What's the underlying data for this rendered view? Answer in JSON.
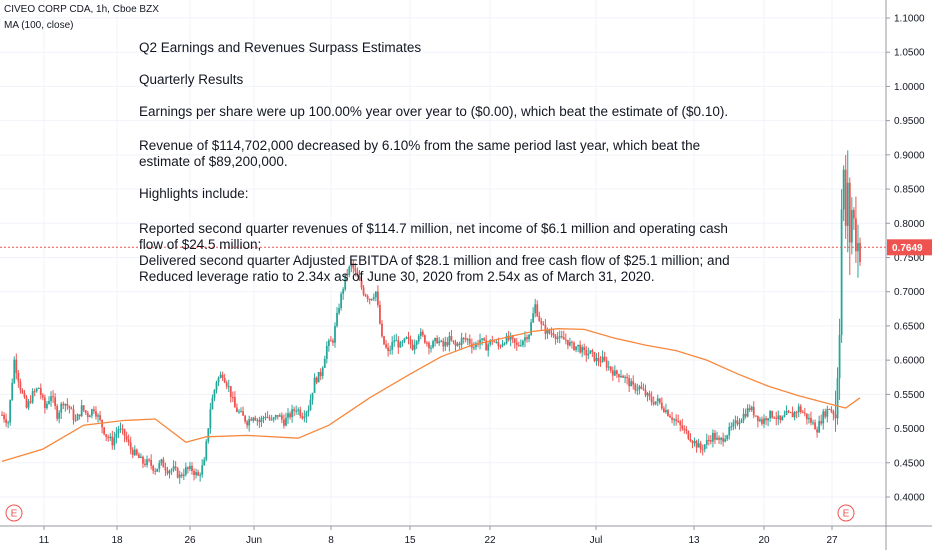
{
  "header": {
    "symbol_line": "CIVEO CORP CDA, 1h, Cboe BZX",
    "indicator_line": "MA (100, close)"
  },
  "annotation": {
    "title": "Q2 Earnings and Revenues Surpass Estimates",
    "subtitle": "Quarterly Results",
    "eps": "Earnings per share were up 100.00% year over year to ($0.00), which beat the estimate of ($0.10).",
    "revenue_l1": "Revenue of $114,702,000 decreased by 6.10% from the same period last year, which beat the",
    "revenue_l2": "estimate of $89,200,000.",
    "highlights": "Highlights include:",
    "hl1_l1": "Reported second quarter revenues of $114.7 million, net income of $6.1 million and operating cash",
    "hl1_l2": "flow of $24.5 million;",
    "hl2": "Delivered second quarter Adjusted EBITDA of $28.1 million and free cash flow of $25.1 million; and",
    "hl3": "Reduced leverage ratio to 2.34x as of June 30, 2020 from 2.54x as of March 31, 2020."
  },
  "colors": {
    "up": "#26a69a",
    "down": "#ef5350",
    "ma": "#f7873d",
    "price_line": "#ef5350",
    "grid": "#f0f3fa",
    "axis_border": "#9598a1"
  },
  "chart_data": {
    "type": "candlestick",
    "ylim": [
      0.37,
      1.11
    ],
    "y_ticks": [
      "0.4000",
      "0.4500",
      "0.5000",
      "0.5500",
      "0.6000",
      "0.6500",
      "0.7000",
      "0.7500",
      "0.8000",
      "0.8500",
      "0.9000",
      "0.9500",
      "1.0000",
      "1.0500",
      "1.1000"
    ],
    "y_tick_values": [
      0.4,
      0.45,
      0.5,
      0.55,
      0.6,
      0.65,
      0.7,
      0.75,
      0.8,
      0.85,
      0.9,
      0.95,
      1.0,
      1.05,
      1.1
    ],
    "x_ticks": [
      "11",
      "18",
      "26",
      "Jun",
      "8",
      "15",
      "22",
      "Jul",
      "13",
      "20",
      "27"
    ],
    "last_price": "0.7649",
    "last_price_value": 0.7649,
    "event_markers": [
      "E",
      "E"
    ],
    "price_path": [
      [
        0,
        0.52
      ],
      [
        3,
        0.51
      ],
      [
        6,
        0.6
      ],
      [
        9,
        0.56
      ],
      [
        12,
        0.53
      ],
      [
        15,
        0.55
      ],
      [
        18,
        0.56
      ],
      [
        21,
        0.53
      ],
      [
        24,
        0.55
      ],
      [
        27,
        0.52
      ],
      [
        30,
        0.54
      ],
      [
        33,
        0.53
      ],
      [
        36,
        0.51
      ],
      [
        39,
        0.53
      ],
      [
        42,
        0.52
      ],
      [
        45,
        0.53
      ],
      [
        48,
        0.51
      ],
      [
        51,
        0.49
      ],
      [
        54,
        0.48
      ],
      [
        57,
        0.5
      ],
      [
        60,
        0.49
      ],
      [
        63,
        0.47
      ],
      [
        66,
        0.46
      ],
      [
        69,
        0.45
      ],
      [
        72,
        0.45
      ],
      [
        75,
        0.44
      ],
      [
        78,
        0.45
      ],
      [
        81,
        0.44
      ],
      [
        84,
        0.44
      ],
      [
        87,
        0.43
      ],
      [
        90,
        0.44
      ],
      [
        93,
        0.44
      ],
      [
        96,
        0.43
      ],
      [
        99,
        0.45
      ],
      [
        102,
        0.53
      ],
      [
        105,
        0.57
      ],
      [
        108,
        0.58
      ],
      [
        111,
        0.56
      ],
      [
        114,
        0.53
      ],
      [
        117,
        0.52
      ],
      [
        120,
        0.51
      ],
      [
        123,
        0.52
      ],
      [
        126,
        0.51
      ],
      [
        129,
        0.52
      ],
      [
        132,
        0.51
      ],
      [
        135,
        0.52
      ],
      [
        138,
        0.51
      ],
      [
        141,
        0.52
      ],
      [
        144,
        0.53
      ],
      [
        147,
        0.52
      ],
      [
        150,
        0.53
      ],
      [
        153,
        0.57
      ],
      [
        156,
        0.58
      ],
      [
        159,
        0.62
      ],
      [
        162,
        0.63
      ],
      [
        165,
        0.68
      ],
      [
        168,
        0.72
      ],
      [
        171,
        0.74
      ],
      [
        174,
        0.72
      ],
      [
        177,
        0.7
      ],
      [
        180,
        0.69
      ],
      [
        183,
        0.7
      ],
      [
        186,
        0.63
      ],
      [
        189,
        0.61
      ],
      [
        192,
        0.63
      ],
      [
        195,
        0.62
      ],
      [
        198,
        0.63
      ],
      [
        201,
        0.62
      ],
      [
        204,
        0.64
      ],
      [
        207,
        0.63
      ],
      [
        210,
        0.62
      ],
      [
        213,
        0.63
      ],
      [
        216,
        0.62
      ],
      [
        219,
        0.63
      ],
      [
        222,
        0.62
      ],
      [
        225,
        0.63
      ],
      [
        228,
        0.63
      ],
      [
        231,
        0.62
      ],
      [
        234,
        0.63
      ],
      [
        237,
        0.62
      ],
      [
        240,
        0.63
      ],
      [
        243,
        0.62
      ],
      [
        246,
        0.63
      ],
      [
        249,
        0.63
      ],
      [
        252,
        0.62
      ],
      [
        255,
        0.63
      ],
      [
        258,
        0.64
      ],
      [
        261,
        0.68
      ],
      [
        264,
        0.65
      ],
      [
        267,
        0.64
      ],
      [
        270,
        0.64
      ],
      [
        273,
        0.63
      ],
      [
        276,
        0.63
      ],
      [
        279,
        0.62
      ],
      [
        282,
        0.62
      ],
      [
        285,
        0.61
      ],
      [
        288,
        0.61
      ],
      [
        291,
        0.6
      ],
      [
        294,
        0.6
      ],
      [
        297,
        0.59
      ],
      [
        300,
        0.58
      ],
      [
        303,
        0.58
      ],
      [
        306,
        0.57
      ],
      [
        309,
        0.56
      ],
      [
        312,
        0.56
      ],
      [
        315,
        0.55
      ],
      [
        318,
        0.54
      ],
      [
        321,
        0.54
      ],
      [
        324,
        0.53
      ],
      [
        327,
        0.52
      ],
      [
        330,
        0.51
      ],
      [
        333,
        0.5
      ],
      [
        336,
        0.49
      ],
      [
        339,
        0.48
      ],
      [
        342,
        0.47
      ],
      [
        345,
        0.48
      ],
      [
        348,
        0.49
      ],
      [
        351,
        0.48
      ],
      [
        354,
        0.49
      ],
      [
        357,
        0.5
      ],
      [
        360,
        0.51
      ],
      [
        363,
        0.52
      ],
      [
        366,
        0.53
      ],
      [
        369,
        0.52
      ],
      [
        372,
        0.51
      ],
      [
        375,
        0.52
      ],
      [
        378,
        0.52
      ],
      [
        381,
        0.51
      ],
      [
        384,
        0.52
      ],
      [
        387,
        0.52
      ],
      [
        390,
        0.53
      ],
      [
        393,
        0.52
      ],
      [
        396,
        0.51
      ],
      [
        399,
        0.5
      ],
      [
        402,
        0.52
      ],
      [
        405,
        0.53
      ],
      [
        408,
        0.52
      ],
      [
        410,
        0.66
      ],
      [
        411,
        0.82
      ],
      [
        412,
        0.86
      ],
      [
        413,
        0.8
      ],
      [
        414,
        0.84
      ],
      [
        415,
        0.78
      ],
      [
        416,
        0.82
      ],
      [
        417,
        0.8
      ],
      [
        418,
        0.78
      ],
      [
        419,
        0.77
      ],
      [
        420,
        0.7649
      ]
    ],
    "ma_path": [
      [
        0,
        0.452
      ],
      [
        20,
        0.47
      ],
      [
        40,
        0.505
      ],
      [
        60,
        0.512
      ],
      [
        75,
        0.514
      ],
      [
        90,
        0.48
      ],
      [
        100,
        0.488
      ],
      [
        120,
        0.49
      ],
      [
        145,
        0.486
      ],
      [
        160,
        0.505
      ],
      [
        180,
        0.545
      ],
      [
        200,
        0.58
      ],
      [
        215,
        0.605
      ],
      [
        230,
        0.622
      ],
      [
        245,
        0.632
      ],
      [
        260,
        0.642
      ],
      [
        272,
        0.646
      ],
      [
        285,
        0.645
      ],
      [
        300,
        0.632
      ],
      [
        315,
        0.622
      ],
      [
        330,
        0.614
      ],
      [
        345,
        0.6
      ],
      [
        360,
        0.58
      ],
      [
        375,
        0.562
      ],
      [
        390,
        0.548
      ],
      [
        405,
        0.536
      ],
      [
        413,
        0.53
      ],
      [
        420,
        0.545
      ]
    ]
  }
}
